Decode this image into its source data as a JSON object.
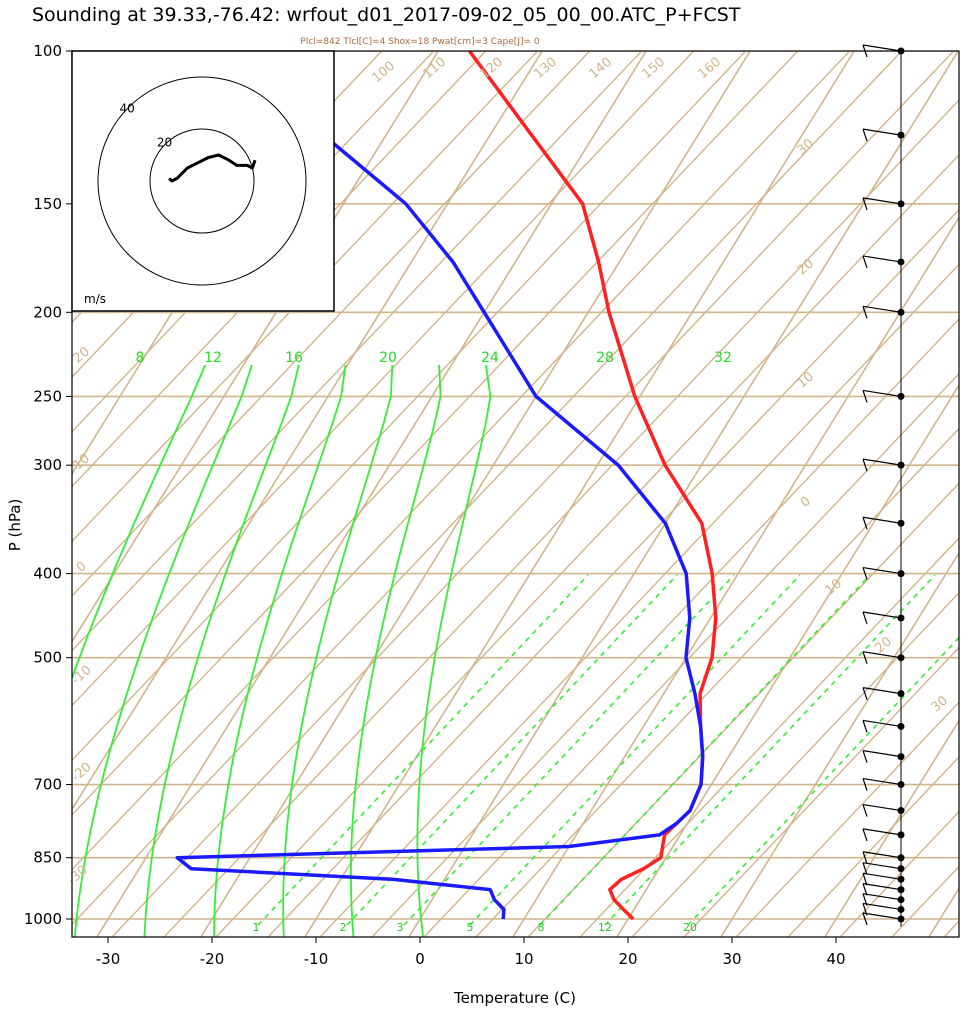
{
  "title": "Sounding at 39.33,-76.42: wrfout_d01_2017-09-02_05_00_00.ATC_P+FCST",
  "stats": "Plcl=842 Tlcl[C]=4 Shox=18 Pwat[cm]=3 Cape[J]= 0",
  "colors": {
    "temperature": "#ff2020",
    "dewpoint": "#1a1aff",
    "isotherm": "#d2b48c",
    "moist_adiabat": "#33ee33",
    "mixing_ratio": "#33ee33",
    "hodograph": "#000000"
  },
  "chart_data": {
    "type": "line",
    "title": "Sounding at 39.33,-76.42: wrfout_d01_2017-09-02_05_00_00.ATC_P+FCST",
    "xlabel": "Temperature (C)",
    "ylabel": "P (hPa)",
    "x_ticks": [
      -30,
      -20,
      -10,
      0,
      10,
      20,
      30,
      40
    ],
    "y_ticks": [
      100,
      150,
      200,
      250,
      300,
      400,
      500,
      700,
      850,
      1000
    ],
    "xlim": [
      -33,
      47
    ],
    "ylim": [
      1050,
      100
    ],
    "y_scale": "log",
    "skewed_isotherm_labels": [
      "100",
      "110",
      "120",
      "130",
      "140",
      "150",
      "160",
      "30",
      "20",
      "10",
      "0",
      "10",
      "20",
      "30",
      "20",
      "10",
      "0",
      "-10",
      "-20",
      "-30"
    ],
    "moist_adiabat_labels": [
      "8",
      "12",
      "16",
      "20",
      "24",
      "28",
      "32"
    ],
    "mixing_ratio_labels": [
      "1",
      "2",
      "3",
      "5",
      "8",
      "12",
      "20"
    ],
    "series": [
      {
        "name": "Temperature",
        "pressure": [
          1000,
          975,
          950,
          925,
          900,
          875,
          850,
          825,
          800,
          775,
          750,
          700,
          650,
          600,
          550,
          500,
          450,
          400,
          350,
          300,
          250,
          200,
          175,
          150,
          125,
          100
        ],
        "values": [
          20.5,
          19,
          17.5,
          16.5,
          17,
          18.5,
          19.5,
          19,
          18.5,
          19,
          19.5,
          19,
          17.5,
          15.5,
          13.5,
          12.5,
          10.5,
          7.5,
          3.5,
          -3.5,
          -10.5,
          -18,
          -22,
          -27,
          -36,
          -47
        ]
      },
      {
        "name": "Dew point",
        "pressure": [
          1000,
          975,
          950,
          925,
          900,
          875,
          850,
          825,
          800,
          775,
          750,
          700,
          650,
          600,
          550,
          500,
          450,
          400,
          350,
          300,
          250,
          200,
          175,
          150,
          125,
          100
        ],
        "values": [
          8,
          7.5,
          6,
          5,
          -5,
          -25,
          -27,
          10,
          18,
          19,
          19.5,
          19,
          17.5,
          15.5,
          13,
          10,
          8,
          5,
          0,
          -8,
          -20,
          -30,
          -36,
          -44,
          -56,
          -67
        ]
      }
    ],
    "wind_barbs_pressure": [
      1000,
      975,
      950,
      925,
      900,
      875,
      850,
      800,
      750,
      700,
      650,
      600,
      550,
      500,
      450,
      400,
      350,
      300,
      250,
      200,
      175,
      150,
      125,
      100
    ],
    "hodograph": {
      "unit": "m/s",
      "rings": [
        20,
        40
      ],
      "u": [
        -3,
        -2,
        0,
        2,
        4,
        6,
        8,
        12,
        16,
        20,
        23,
        27,
        29,
        30
      ],
      "v": [
        1,
        0,
        1,
        3,
        5,
        6,
        7,
        9,
        10,
        8,
        6,
        6,
        5,
        8
      ]
    }
  }
}
